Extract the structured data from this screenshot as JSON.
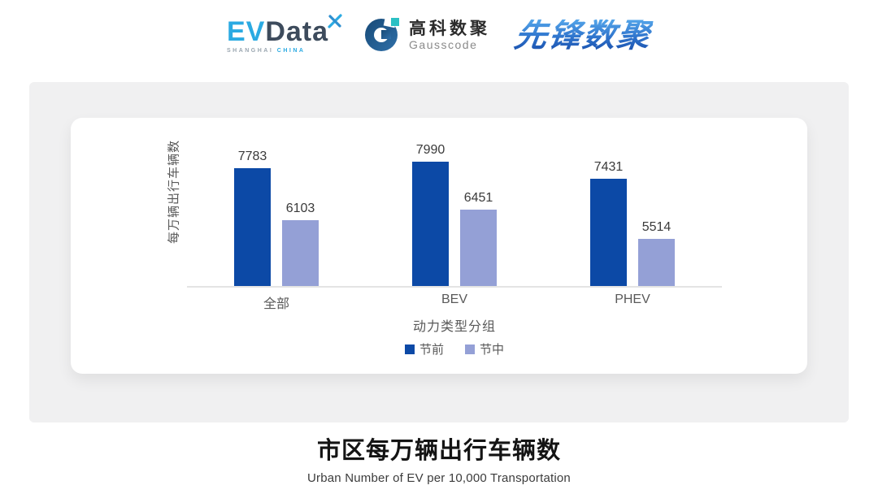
{
  "header": {
    "evdata": {
      "ev": "EV",
      "data": "Data",
      "tagline_left": "SHANGHAI",
      "tagline_right": "CHINA"
    },
    "gausscode": {
      "cn": "高科数聚",
      "en": "Gausscode"
    },
    "xianfeng": {
      "text": "先锋数聚"
    }
  },
  "chart_data": {
    "type": "bar",
    "title": "市区每万辆出行车辆数",
    "subtitle": "Urban Number of EV per 10,000 Transportation",
    "xlabel": "动力类型分组",
    "ylabel": "每万辆出行车辆数",
    "categories": [
      "全部",
      "BEV",
      "PHEV"
    ],
    "series": [
      {
        "name": "节前",
        "color": "#0C49A6",
        "values": [
          7783,
          7990,
          7431
        ]
      },
      {
        "name": "节中",
        "color": "#94A0D6",
        "values": [
          6103,
          6451,
          5514
        ]
      }
    ],
    "ylim": [
      4000,
      8400
    ],
    "value_labels": true,
    "grid": false,
    "legend_position": "bottom"
  },
  "colors": {
    "bar_dark": "#0C49A6",
    "bar_light": "#94A0D6",
    "axis_line": "#E4E4E4",
    "axis_text": "#595959",
    "value_text": "#3A3A3A",
    "panel_bg": "#F0F0F1",
    "card_bg": "#FFFFFF",
    "evdata_cyan": "#2BAAE2",
    "evdata_dark": "#3D4B5C",
    "gausscode_navy": "#1C5380",
    "gausscode_teal": "#2BC0C4",
    "xianfeng_blue": "#2E73CC"
  }
}
